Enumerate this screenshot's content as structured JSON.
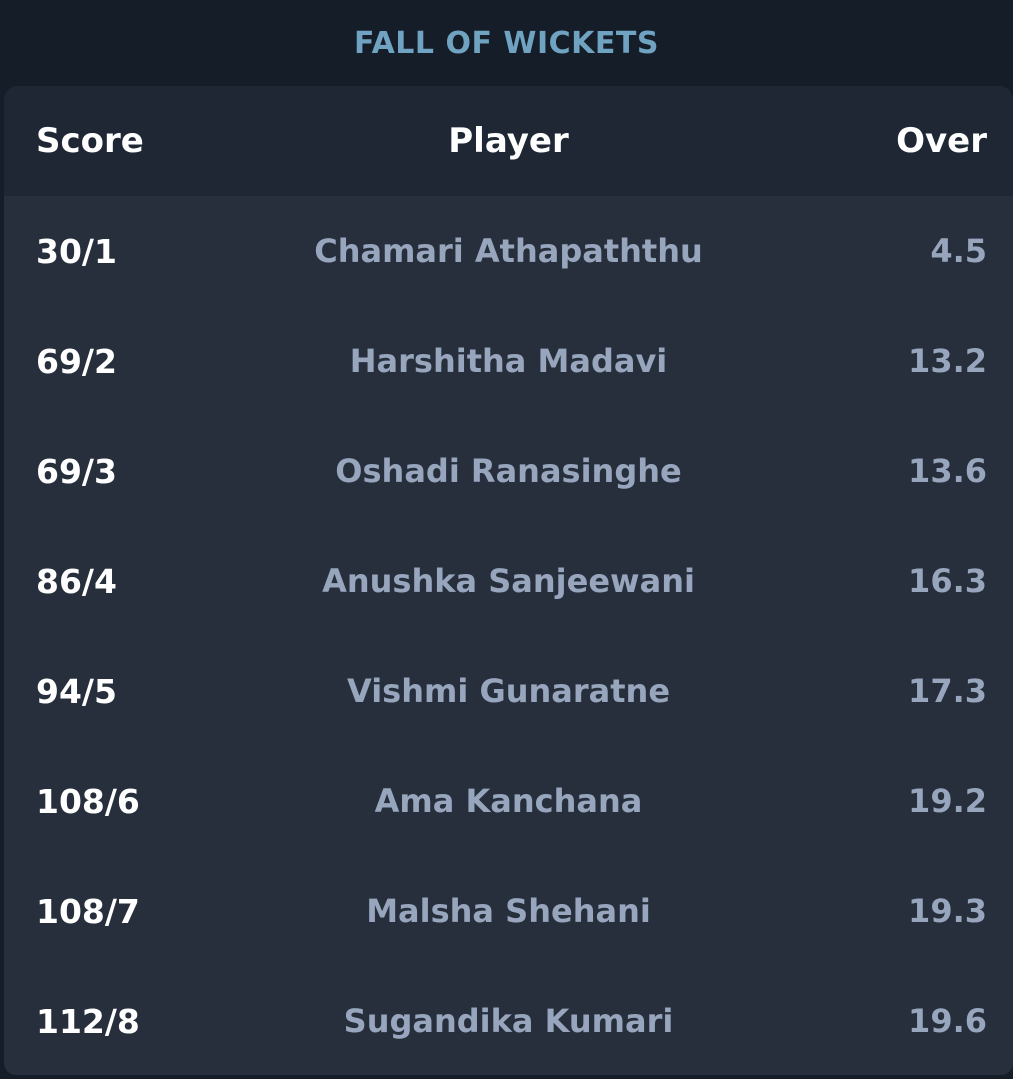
{
  "section": {
    "title": "FALL OF WICKETS"
  },
  "table": {
    "headers": {
      "score": "Score",
      "player": "Player",
      "over": "Over"
    },
    "rows": [
      {
        "score": "30/1",
        "player": "Chamari Athapaththu",
        "over": "4.5"
      },
      {
        "score": "69/2",
        "player": "Harshitha Madavi",
        "over": "13.2"
      },
      {
        "score": "69/3",
        "player": "Oshadi Ranasinghe",
        "over": "13.6"
      },
      {
        "score": "86/4",
        "player": "Anushka Sanjeewani",
        "over": "16.3"
      },
      {
        "score": "94/5",
        "player": "Vishmi Gunaratne",
        "over": "17.3"
      },
      {
        "score": "108/6",
        "player": "Ama Kanchana",
        "over": "19.2"
      },
      {
        "score": "108/7",
        "player": "Malsha Shehani",
        "over": "19.3"
      },
      {
        "score": "112/8",
        "player": "Sugandika Kumari",
        "over": "19.6"
      }
    ]
  },
  "colors": {
    "title": "#6fa3c1",
    "page_background": "#151d29",
    "header_background": "#1f2735",
    "card_background": "#272f3d",
    "score_text": "#ffffff",
    "secondary_text": "#97a5bd"
  }
}
